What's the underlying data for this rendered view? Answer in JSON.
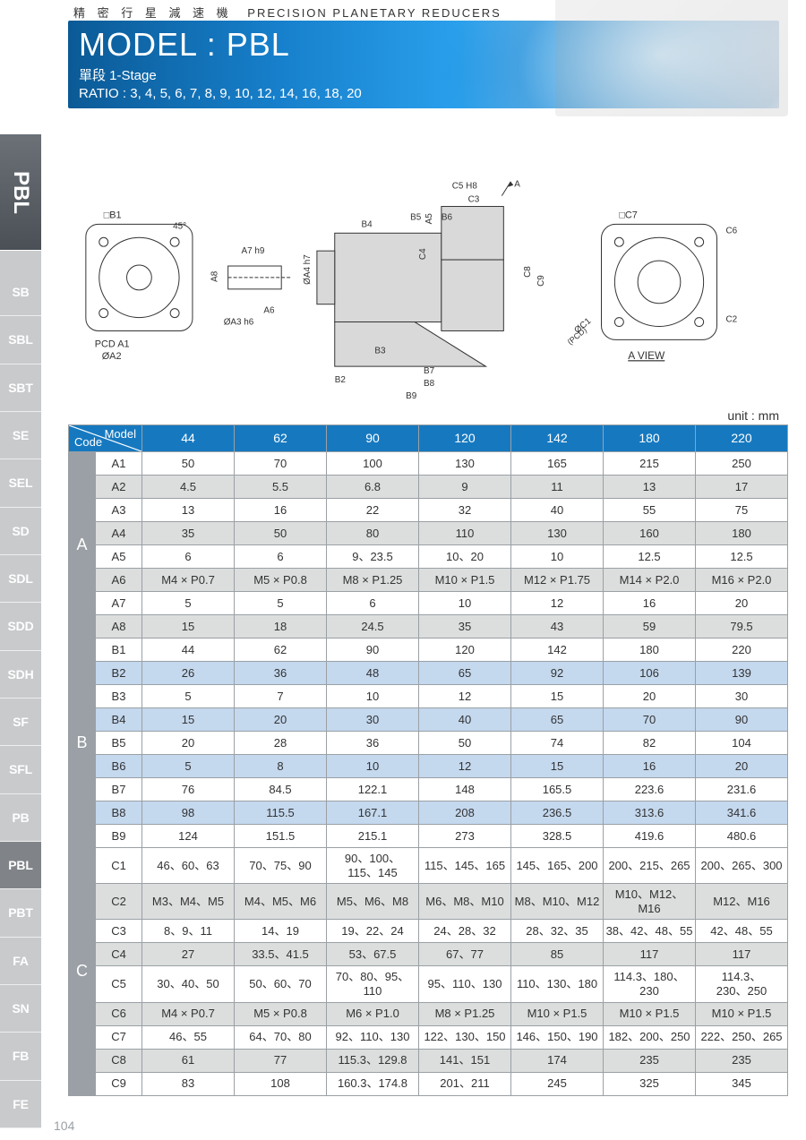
{
  "page_number": "104",
  "sidebar": {
    "primary": "PBL",
    "items": [
      "SB",
      "SBL",
      "SBT",
      "SE",
      "SEL",
      "SD",
      "SDL",
      "SDD",
      "SDH",
      "SF",
      "SFL",
      "PB",
      "PBL",
      "PBT",
      "FA",
      "SN",
      "FB",
      "FE"
    ],
    "active_index": 12
  },
  "header": {
    "cn_sub": "精 密 行 星 減 速 機",
    "en_sub": "PRECISION PLANETARY REDUCERS",
    "model_label": "MODEL : PBL",
    "stage": "單段 1-Stage",
    "ratio": "RATIO : 3, 4, 5, 6, 7, 8, 9, 10, 12, 14, 16, 18, 20"
  },
  "unit_label": "unit : mm",
  "table": {
    "corner": {
      "top": "Model",
      "bottom": "Code"
    },
    "models": [
      "44",
      "62",
      "90",
      "120",
      "142",
      "180",
      "220"
    ],
    "groups": [
      {
        "name": "A",
        "stripe": "a",
        "rows": [
          {
            "code": "A1",
            "vals": [
              "50",
              "70",
              "100",
              "130",
              "165",
              "215",
              "250"
            ]
          },
          {
            "code": "A2",
            "vals": [
              "4.5",
              "5.5",
              "6.8",
              "9",
              "11",
              "13",
              "17"
            ]
          },
          {
            "code": "A3",
            "vals": [
              "13",
              "16",
              "22",
              "32",
              "40",
              "55",
              "75"
            ]
          },
          {
            "code": "A4",
            "vals": [
              "35",
              "50",
              "80",
              "110",
              "130",
              "160",
              "180"
            ]
          },
          {
            "code": "A5",
            "vals": [
              "6",
              "6",
              "9、23.5",
              "10、20",
              "10",
              "12.5",
              "12.5"
            ]
          },
          {
            "code": "A6",
            "vals": [
              "M4 × P0.7",
              "M5 × P0.8",
              "M8 × P1.25",
              "M10 × P1.5",
              "M12 × P1.75",
              "M14 × P2.0",
              "M16 × P2.0"
            ]
          },
          {
            "code": "A7",
            "vals": [
              "5",
              "5",
              "6",
              "10",
              "12",
              "16",
              "20"
            ]
          },
          {
            "code": "A8",
            "vals": [
              "15",
              "18",
              "24.5",
              "35",
              "43",
              "59",
              "79.5"
            ]
          }
        ]
      },
      {
        "name": "B",
        "stripe": "b",
        "rows": [
          {
            "code": "B1",
            "vals": [
              "44",
              "62",
              "90",
              "120",
              "142",
              "180",
              "220"
            ]
          },
          {
            "code": "B2",
            "vals": [
              "26",
              "36",
              "48",
              "65",
              "92",
              "106",
              "139"
            ]
          },
          {
            "code": "B3",
            "vals": [
              "5",
              "7",
              "10",
              "12",
              "15",
              "20",
              "30"
            ]
          },
          {
            "code": "B4",
            "vals": [
              "15",
              "20",
              "30",
              "40",
              "65",
              "70",
              "90"
            ]
          },
          {
            "code": "B5",
            "vals": [
              "20",
              "28",
              "36",
              "50",
              "74",
              "82",
              "104"
            ]
          },
          {
            "code": "B6",
            "vals": [
              "5",
              "8",
              "10",
              "12",
              "15",
              "16",
              "20"
            ]
          },
          {
            "code": "B7",
            "vals": [
              "76",
              "84.5",
              "122.1",
              "148",
              "165.5",
              "223.6",
              "231.6"
            ]
          },
          {
            "code": "B8",
            "vals": [
              "98",
              "115.5",
              "167.1",
              "208",
              "236.5",
              "313.6",
              "341.6"
            ]
          },
          {
            "code": "B9",
            "vals": [
              "124",
              "151.5",
              "215.1",
              "273",
              "328.5",
              "419.6",
              "480.6"
            ]
          }
        ]
      },
      {
        "name": "C",
        "stripe": "c",
        "rows": [
          {
            "code": "C1",
            "vals": [
              "46、60、63",
              "70、75、90",
              "90、100、\n115、145",
              "115、145、165",
              "145、165、200",
              "200、215、265",
              "200、265、300"
            ]
          },
          {
            "code": "C2",
            "vals": [
              "M3、M4、M5",
              "M4、M5、M6",
              "M5、M6、M8",
              "M6、M8、M10",
              "M8、M10、M12",
              "M10、M12、\nM16",
              "M12、M16"
            ]
          },
          {
            "code": "C3",
            "vals": [
              "8、9、11",
              "14、19",
              "19、22、24",
              "24、28、32",
              "28、32、35",
              "38、42、48、55",
              "42、48、55"
            ]
          },
          {
            "code": "C4",
            "vals": [
              "27",
              "33.5、41.5",
              "53、67.5",
              "67、77",
              "85",
              "117",
              "117"
            ]
          },
          {
            "code": "C5",
            "vals": [
              "30、40、50",
              "50、60、70",
              "70、80、95、110",
              "95、110、130",
              "110、130、180",
              "114.3、180、230",
              "114.3、\n230、250"
            ]
          },
          {
            "code": "C6",
            "vals": [
              "M4 × P0.7",
              "M5 × P0.8",
              "M6 × P1.0",
              "M8 × P1.25",
              "M10 × P1.5",
              "M10 × P1.5",
              "M10 × P1.5"
            ]
          },
          {
            "code": "C7",
            "vals": [
              "46、55",
              "64、70、80",
              "92、110、130",
              "122、130、150",
              "146、150、190",
              "182、200、250",
              "222、250、265"
            ]
          },
          {
            "code": "C8",
            "vals": [
              "61",
              "77",
              "115.3、129.8",
              "141、151",
              "174",
              "235",
              "235"
            ]
          },
          {
            "code": "C9",
            "vals": [
              "83",
              "108",
              "160.3、174.8",
              "201、211",
              "245",
              "325",
              "345"
            ]
          }
        ]
      }
    ]
  },
  "diagram_labels": [
    "□B1",
    "45°",
    "PCD A1",
    "ØA2",
    "A7 h9",
    "A8",
    "A6",
    "ØA3 h6",
    "ØA4 h7",
    "B4",
    "B5",
    "B6",
    "B3",
    "B2",
    "B7",
    "B8",
    "B9",
    "A5",
    "C4",
    "C3",
    "C5 H8",
    "A",
    "C8",
    "C9",
    "□C7",
    "C6",
    "ØC1",
    "(PCD)",
    "C2",
    "A VIEW"
  ]
}
